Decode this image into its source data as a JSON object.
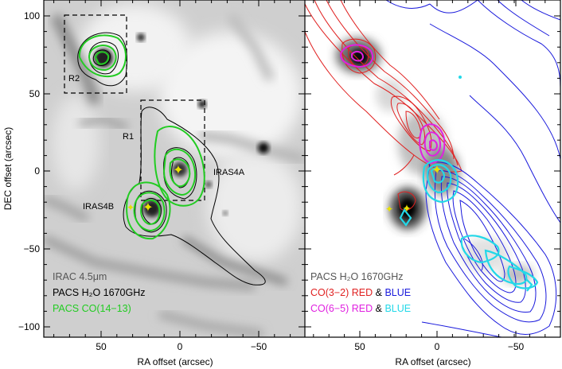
{
  "figure": {
    "ylabel": "DEC offset (arcsec)",
    "xlabel_left": "RA offset (arcsec)",
    "xlabel_right": "RA offset (arcsec)",
    "x_ticks": [
      "50",
      "0",
      "−50"
    ],
    "y_ticks": [
      "100",
      "50",
      "0",
      "−50",
      "−100"
    ]
  },
  "left_panel": {
    "region_r2": "R2",
    "region_r1": "R1",
    "source_iras4a": "IRAS4A",
    "source_iras4b": "IRAS4B",
    "legend": [
      {
        "text": "IRAC 4.5μm",
        "color": "#555555"
      },
      {
        "text": "PACS H₂O 1670GHz",
        "color": "#000000"
      },
      {
        "text": "PACS CO(14−13)",
        "color": "#22cc22"
      }
    ]
  },
  "right_panel": {
    "legend": [
      {
        "text": "PACS H₂O 1670GHz",
        "color": "#555555"
      },
      {
        "parts": [
          {
            "text": "CO(3−2) RED",
            "color": "#e02020"
          },
          {
            "text": " & ",
            "color": "#000000"
          },
          {
            "text": "BLUE",
            "color": "#1a1adc"
          }
        ]
      },
      {
        "parts": [
          {
            "text": "CO(6−5) RED",
            "color": "#e020e0"
          },
          {
            "text": " & ",
            "color": "#000000"
          },
          {
            "text": "BLUE",
            "color": "#22d8e8"
          }
        ]
      }
    ]
  },
  "colors": {
    "h2o_contour": "#000000",
    "co1413_contour": "#22cc22",
    "co32_red": "#e02020",
    "co32_blue": "#1a1adc",
    "co65_red": "#e020e0",
    "co65_blue": "#22d8e8",
    "source_marker": "#e8e000"
  },
  "axes": {
    "ra_range_arcsec": [
      85,
      -85
    ],
    "dec_range_arcsec": [
      -105,
      110
    ]
  }
}
